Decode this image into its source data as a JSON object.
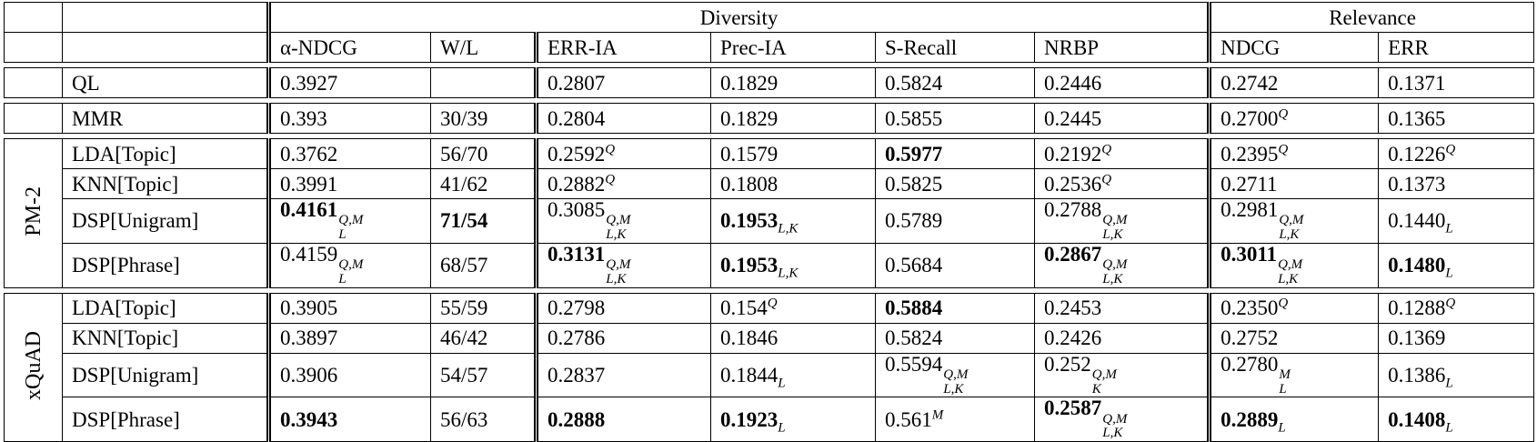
{
  "table": {
    "groups": [
      "Diversity",
      "Relevance"
    ],
    "columns": [
      "α-NDCG",
      "W/L",
      "ERR-IA",
      "Prec-IA",
      "S-Recall",
      "NRBP",
      "NDCG",
      "ERR"
    ],
    "sections": [
      {
        "rows": [
          {
            "method": "QL",
            "values": [
              "0.3927",
              null,
              "0.2807",
              "0.1829",
              "0.5824",
              "0.2446",
              "0.2742",
              "0.1371"
            ]
          }
        ]
      },
      {
        "rows": [
          {
            "method": "MMR",
            "values": [
              "0.393",
              "30/39",
              "0.2804",
              "0.1829",
              "0.5855",
              "0.2445",
              {
                "text": "0.2700",
                "sup": "Q"
              },
              "0.1365"
            ]
          }
        ]
      },
      {
        "label": "PM-2",
        "rows": [
          {
            "method": "LDA[Topic]",
            "values": [
              "0.3762",
              "56/70",
              {
                "text": "0.2592",
                "sup": "Q"
              },
              "0.1579",
              {
                "text": "0.5977",
                "bold": true
              },
              {
                "text": "0.2192",
                "sup": "Q"
              },
              {
                "text": "0.2395",
                "sup": "Q"
              },
              {
                "text": "0.1226",
                "sup": "Q"
              }
            ]
          },
          {
            "method": "KNN[Topic]",
            "values": [
              "0.3991",
              "41/62",
              {
                "text": "0.2882",
                "sup": "Q"
              },
              "0.1808",
              "0.5825",
              {
                "text": "0.2536",
                "sup": "Q"
              },
              "0.2711",
              "0.1373"
            ]
          },
          {
            "method": "DSP[Unigram]",
            "values": [
              {
                "text": "0.4161",
                "bold": true,
                "sup": "Q,M",
                "sub": "L"
              },
              {
                "text": "71/54",
                "bold": true
              },
              {
                "text": "0.3085",
                "sup": "Q,M",
                "sub": "L,K"
              },
              {
                "text": "0.1953",
                "bold": true,
                "sub": "L,K"
              },
              "0.5789",
              {
                "text": "0.2788",
                "sup": "Q,M",
                "sub": "L,K"
              },
              {
                "text": "0.2981",
                "sup": "Q,M",
                "sub": "L,K"
              },
              {
                "text": "0.1440",
                "sub": "L"
              }
            ]
          },
          {
            "method": "DSP[Phrase]",
            "values": [
              {
                "text": "0.4159",
                "sup": "Q,M",
                "sub": "L"
              },
              "68/57",
              {
                "text": "0.3131",
                "bold": true,
                "sup": "Q,M",
                "sub": "L,K"
              },
              {
                "text": "0.1953",
                "bold": true,
                "sub": "L,K"
              },
              "0.5684",
              {
                "text": "0.2867",
                "bold": true,
                "sup": "Q,M",
                "sub": "L,K"
              },
              {
                "text": "0.3011",
                "bold": true,
                "sup": "Q,M",
                "sub": "L,K"
              },
              {
                "text": "0.1480",
                "bold": true,
                "sub": "L"
              }
            ]
          }
        ]
      },
      {
        "label": "xQuAD",
        "rows": [
          {
            "method": "LDA[Topic]",
            "values": [
              "0.3905",
              "55/59",
              "0.2798",
              {
                "text": "0.154",
                "sup": "Q"
              },
              {
                "text": "0.5884",
                "bold": true
              },
              "0.2453",
              {
                "text": "0.2350",
                "sup": "Q"
              },
              {
                "text": "0.1288",
                "sup": "Q"
              }
            ]
          },
          {
            "method": "KNN[Topic]",
            "values": [
              "0.3897",
              "46/42",
              "0.2786",
              "0.1846",
              "0.5824",
              "0.2426",
              "0.2752",
              "0.1369"
            ]
          },
          {
            "method": "DSP[Unigram]",
            "values": [
              "0.3906",
              "54/57",
              "0.2837",
              {
                "text": "0.1844",
                "sub": "L"
              },
              {
                "text": "0.5594",
                "sup": "Q,M",
                "sub": "L,K"
              },
              {
                "text": "0.252",
                "sup": "Q,M",
                "sub": "K"
              },
              {
                "text": "0.2780",
                "sup": "M",
                "sub": "L"
              },
              {
                "text": "0.1386",
                "sub": "L"
              }
            ]
          },
          {
            "method": "DSP[Phrase]",
            "values": [
              {
                "text": "0.3943",
                "bold": true
              },
              "56/63",
              {
                "text": "0.2888",
                "bold": true
              },
              {
                "text": "0.1923",
                "bold": true,
                "sub": "L"
              },
              {
                "text": "0.561",
                "sup": "M"
              },
              {
                "text": "0.2587",
                "bold": true,
                "sup": "Q,M",
                "sub": "L,K"
              },
              {
                "text": "0.2889",
                "bold": true,
                "sub": "L"
              },
              {
                "text": "0.1408",
                "bold": true,
                "sub": "L"
              }
            ]
          }
        ]
      }
    ]
  }
}
